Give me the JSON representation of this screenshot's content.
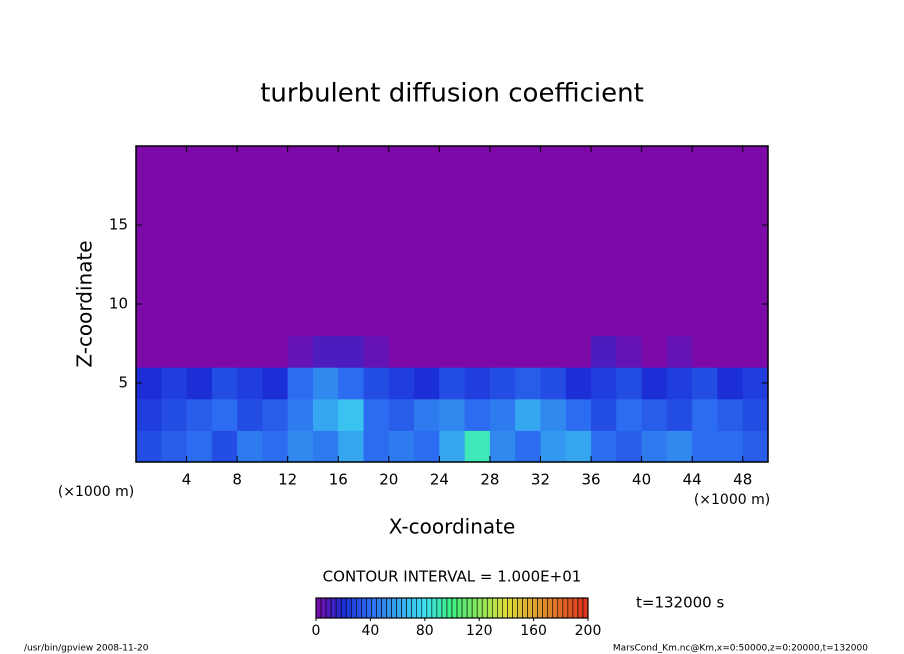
{
  "chart_data": {
    "type": "heatmap",
    "title": "turbulent diffusion coefficient",
    "xlabel": "X-coordinate",
    "ylabel": "Z-coordinate",
    "x_unit": "(×1000 m)",
    "y_unit": "(×1000 m)",
    "xlim": [
      0,
      50
    ],
    "ylim": [
      0,
      20
    ],
    "xticks": [
      4,
      8,
      12,
      16,
      20,
      24,
      28,
      32,
      36,
      40,
      44,
      48
    ],
    "yticks": [
      5,
      10,
      15
    ],
    "x": [
      1,
      3,
      5,
      7,
      9,
      11,
      13,
      15,
      17,
      19,
      21,
      23,
      25,
      27,
      29,
      31,
      33,
      35,
      37,
      39,
      41,
      43,
      45,
      47,
      49
    ],
    "z": [
      1,
      3,
      5,
      7,
      9,
      11,
      13,
      15,
      17,
      19
    ],
    "values": [
      [
        30,
        35,
        40,
        30,
        45,
        40,
        50,
        45,
        60,
        40,
        45,
        40,
        60,
        90,
        50,
        40,
        55,
        60,
        40,
        35,
        45,
        50,
        40,
        40,
        35
      ],
      [
        25,
        30,
        35,
        40,
        30,
        35,
        45,
        60,
        70,
        40,
        35,
        45,
        50,
        40,
        45,
        60,
        50,
        40,
        30,
        40,
        35,
        30,
        40,
        35,
        30
      ],
      [
        20,
        25,
        20,
        30,
        25,
        20,
        40,
        50,
        40,
        30,
        25,
        20,
        30,
        25,
        30,
        35,
        30,
        20,
        25,
        30,
        20,
        25,
        30,
        20,
        25
      ],
      [
        0,
        0,
        0,
        0,
        0,
        0,
        5,
        10,
        10,
        5,
        0,
        0,
        0,
        0,
        0,
        0,
        0,
        0,
        10,
        5,
        0,
        5,
        0,
        0,
        0
      ],
      [
        0,
        0,
        0,
        0,
        0,
        0,
        0,
        0,
        0,
        0,
        0,
        0,
        0,
        0,
        0,
        0,
        0,
        0,
        0,
        0,
        0,
        0,
        0,
        0,
        0
      ],
      [
        0,
        0,
        0,
        0,
        0,
        0,
        0,
        0,
        0,
        0,
        0,
        0,
        0,
        0,
        0,
        0,
        0,
        0,
        0,
        0,
        0,
        0,
        0,
        0,
        0
      ],
      [
        0,
        0,
        0,
        0,
        0,
        0,
        0,
        0,
        0,
        0,
        0,
        0,
        0,
        0,
        0,
        0,
        0,
        0,
        0,
        0,
        0,
        0,
        0,
        0,
        0
      ],
      [
        0,
        0,
        0,
        0,
        0,
        0,
        0,
        0,
        0,
        0,
        0,
        0,
        0,
        0,
        0,
        0,
        0,
        0,
        0,
        0,
        0,
        0,
        0,
        0,
        0
      ],
      [
        0,
        0,
        0,
        0,
        0,
        0,
        0,
        0,
        0,
        0,
        0,
        0,
        0,
        0,
        0,
        0,
        0,
        0,
        0,
        0,
        0,
        0,
        0,
        0,
        0
      ],
      [
        0,
        0,
        0,
        0,
        0,
        0,
        0,
        0,
        0,
        0,
        0,
        0,
        0,
        0,
        0,
        0,
        0,
        0,
        0,
        0,
        0,
        0,
        0,
        0,
        0
      ]
    ],
    "colorscale": [
      [
        0,
        "#7d0aa8"
      ],
      [
        20,
        "#1c2ed6"
      ],
      [
        40,
        "#2c6cf0"
      ],
      [
        80,
        "#3ee0f0"
      ],
      [
        100,
        "#3ef080"
      ],
      [
        140,
        "#dede3a"
      ],
      [
        200,
        "#e0301c"
      ]
    ],
    "contour_interval": "CONTOUR INTERVAL = 1.000E+01",
    "time_label": "t=132000 s",
    "colorbar": {
      "lim": [
        0,
        200
      ],
      "ticks": [
        0,
        40,
        80,
        120,
        160,
        200
      ]
    },
    "footer_left": "/usr/bin/gpview  2008-11-20",
    "footer_right": "MarsCond_Km.nc@Km,x=0:50000,z=0:20000,t=132000"
  }
}
